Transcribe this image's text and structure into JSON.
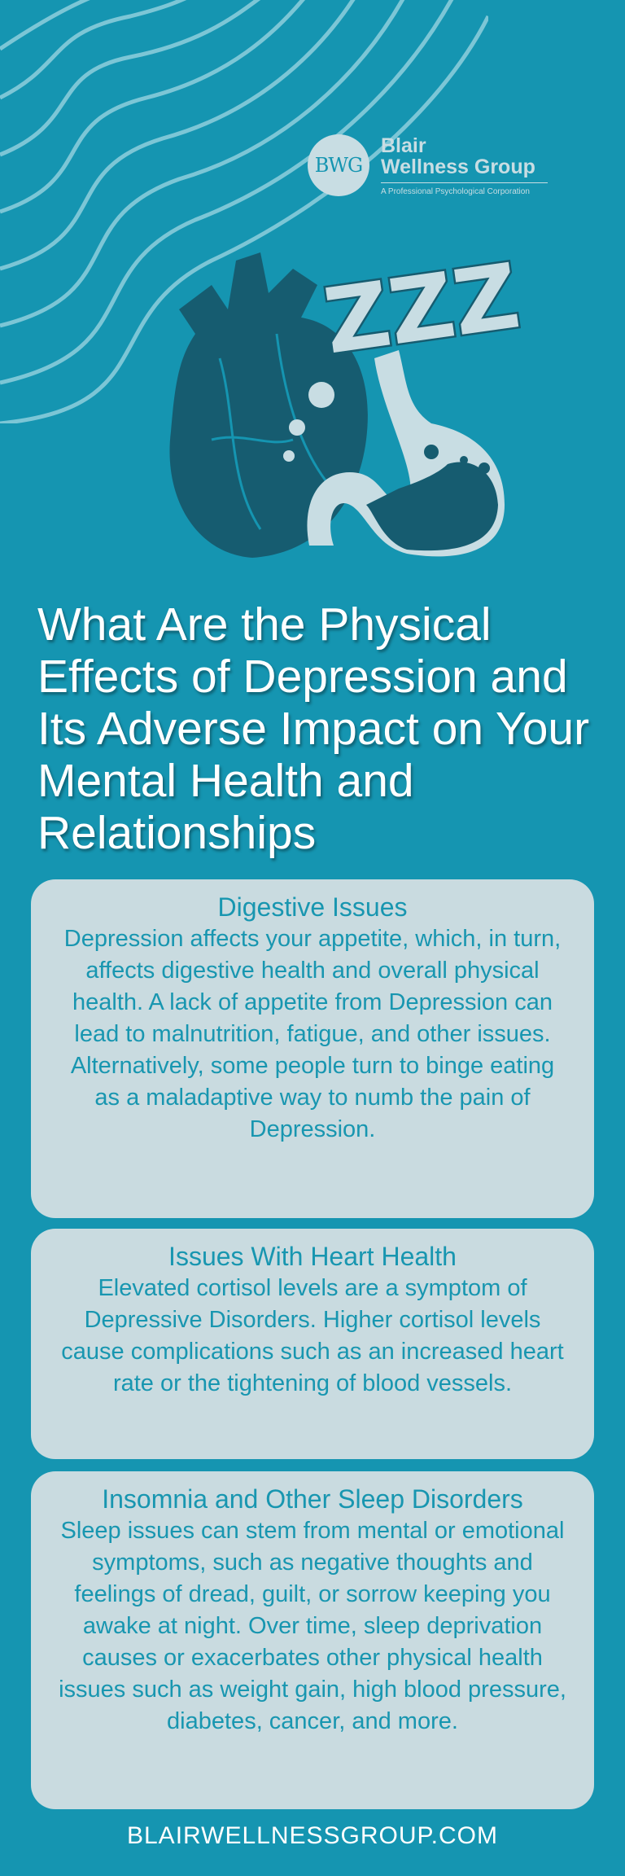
{
  "brand": {
    "monogram": "BWG",
    "name_line1": "Blair",
    "name_line2": "Wellness Group",
    "tagline": "A Professional Psychological Corporation"
  },
  "illustration": {
    "zzz": "ZZZ"
  },
  "title": "What Are the Physical Effects of Depression and Its Adverse Impact on Your Mental Health and Relationships",
  "sections": [
    {
      "heading": "Digestive Issues",
      "body": "Depression affects your appetite, which, in turn, affects digestive health and overall physical health. A lack of appetite from Depression can lead to malnutrition, fatigue, and other issues. Alternatively, some people turn to binge eating as a maladaptive way to numb the pain of Depression."
    },
    {
      "heading": "Issues With Heart Health",
      "body": "Elevated cortisol levels are a symptom of Depressive Disorders. Higher cortisol levels cause complications such as an increased heart rate or the tightening of blood vessels."
    },
    {
      "heading": "Insomnia and Other Sleep Disorders",
      "body": "Sleep issues can stem from mental or emotional symptoms, such as negative thoughts and feelings of dread, guilt, or sorrow keeping you awake at night. Over time, sleep deprivation causes or exacerbates other physical health issues such as weight gain, high blood pressure, diabetes, cancer, and more."
    }
  ],
  "footer": {
    "url": "BLAIRWELLNESSGROUP.COM"
  },
  "colors": {
    "background": "#1595b1",
    "card": "#c9dbe0",
    "card_text": "#1896b0",
    "illustration_dark": "#165c70"
  }
}
